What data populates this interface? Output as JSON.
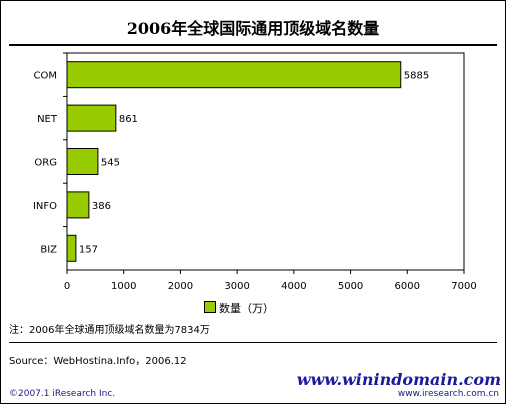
{
  "chart_data": {
    "type": "bar",
    "orientation": "horizontal",
    "title": "2006年全球国际通用顶级域名数量",
    "categories": [
      "COM",
      "NET",
      "ORG",
      "INFO",
      "BIZ"
    ],
    "series": [
      {
        "name": "数量（万）",
        "values": [
          5885,
          861,
          545,
          386,
          157
        ]
      }
    ],
    "xlim": [
      0,
      7000
    ],
    "xticks": [
      0,
      1000,
      2000,
      3000,
      4000,
      5000,
      6000,
      7000
    ],
    "grid": false,
    "legend_position": "bottom-center",
    "bar_color": "#99cc00"
  },
  "legend": {
    "label": "数量（万）"
  },
  "note": "注：2006年全球通用顶级域名数量为7834万",
  "source": "Source：WebHostina.Info，2006.12",
  "footer": {
    "copyright": "©2007.1 iResearch Inc.",
    "watermark": "www.winindomain.com",
    "site": "www.iresearch.com.cn"
  }
}
